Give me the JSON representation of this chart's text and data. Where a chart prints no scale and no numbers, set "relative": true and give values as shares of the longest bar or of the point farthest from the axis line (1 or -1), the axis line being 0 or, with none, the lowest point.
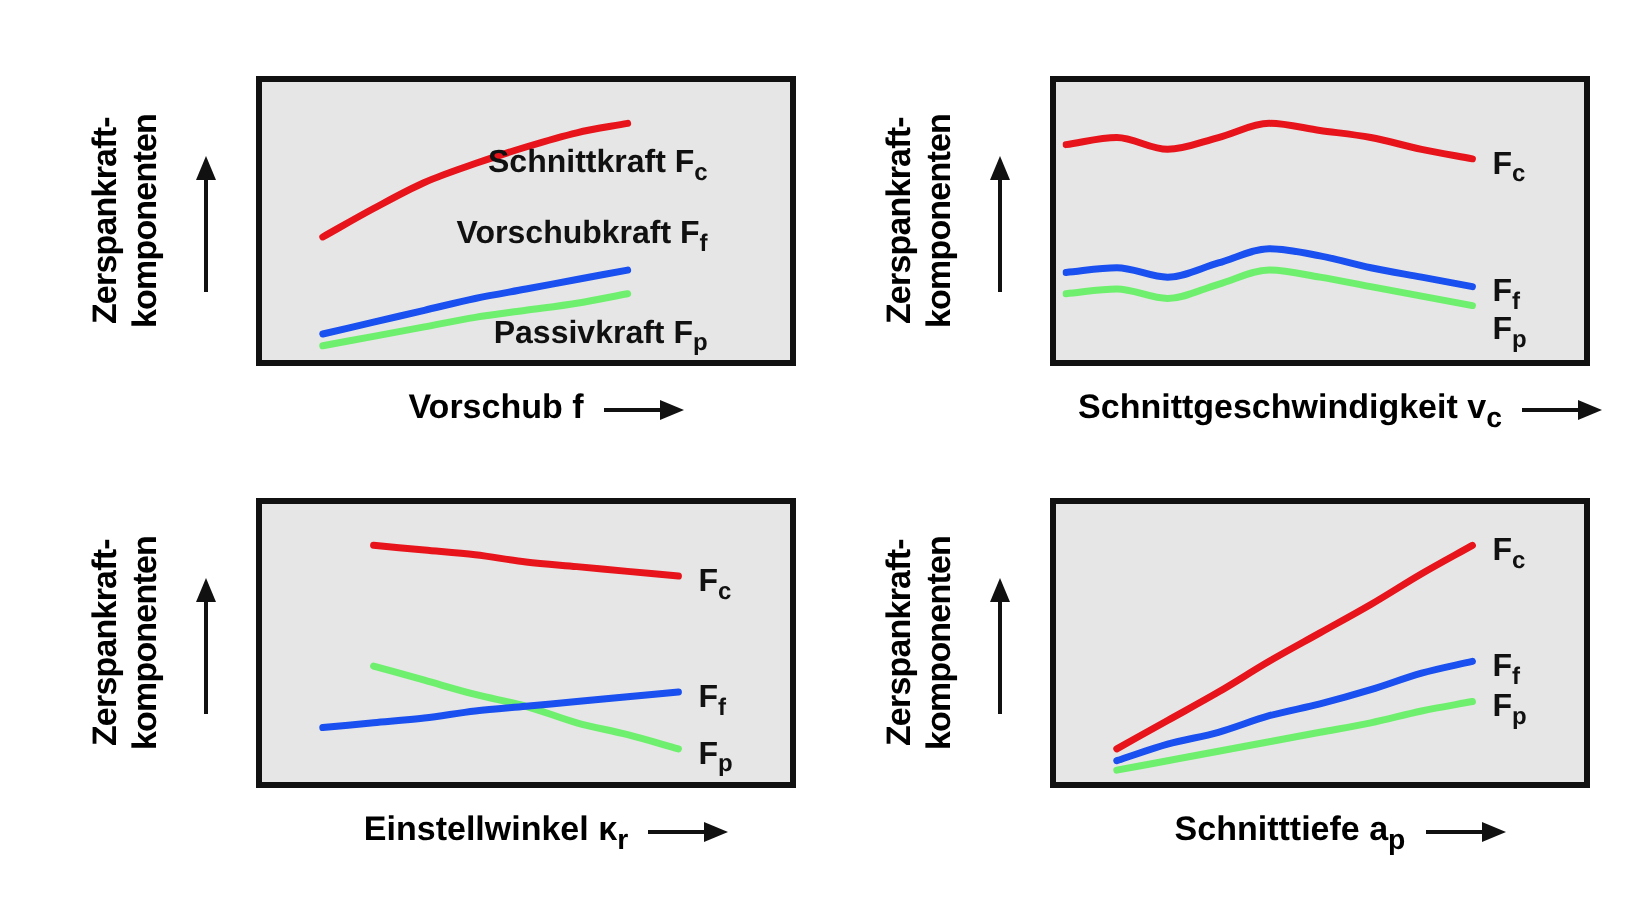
{
  "chart_data": [
    {
      "type": "line",
      "relative": true,
      "marker": "none",
      "line_style": "solid",
      "xlabel": "Vorschub f",
      "ylabel": "Zerspankraft-\nkomponenten",
      "categories": [
        null,
        null,
        null,
        null,
        null,
        null,
        null,
        null,
        null,
        null,
        null
      ],
      "series": [
        {
          "name": "Schnittkraft F$_{c}$",
          "color": "#e8141b",
          "values": [
            null,
            0.52,
            0.64,
            0.75,
            0.83,
            0.9,
            0.96,
            1.0,
            null,
            null,
            null
          ]
        },
        {
          "name": "Vorschubkraft F$_{f}$",
          "color": "#1a4ff0",
          "values": [
            null,
            0.11,
            0.16,
            0.21,
            0.26,
            0.3,
            0.34,
            0.38,
            null,
            null,
            null
          ]
        },
        {
          "name": "Passivkraft F$_{p}$",
          "color": "#6ef06e",
          "values": [
            null,
            0.06,
            0.1,
            0.14,
            0.18,
            0.21,
            0.24,
            0.28,
            null,
            null,
            null
          ]
        }
      ]
    },
    {
      "type": "line",
      "relative": true,
      "marker": "none",
      "line_style": "solid",
      "xlabel": "Schnittgeschwindigkeit v$_{c}$",
      "ylabel": "Zerspankraft-\nkomponenten",
      "categories": [
        null,
        null,
        null,
        null,
        null,
        null,
        null,
        null,
        null,
        null,
        null
      ],
      "series": [
        {
          "name": "F$_{c}$",
          "color": "#e8141b",
          "values": [
            0.91,
            0.94,
            0.89,
            0.94,
            1.0,
            0.97,
            0.94,
            0.89,
            0.85,
            null,
            null
          ]
        },
        {
          "name": "F$_{f}$",
          "color": "#1a4ff0",
          "values": [
            0.37,
            0.39,
            0.35,
            0.41,
            0.47,
            0.44,
            0.39,
            0.35,
            0.31,
            null,
            null
          ]
        },
        {
          "name": "F$_{p}$",
          "color": "#6ef06e",
          "values": [
            0.28,
            0.3,
            0.26,
            0.32,
            0.38,
            0.35,
            0.31,
            0.27,
            0.23,
            null,
            null
          ]
        }
      ]
    },
    {
      "type": "line",
      "relative": true,
      "marker": "none",
      "line_style": "solid",
      "xlabel": "Einstellwinkel κ$_{r}$",
      "ylabel": "Zerspankraft-\nkomponenten",
      "categories": [
        null,
        null,
        null,
        null,
        null,
        null,
        null,
        null,
        null,
        null,
        null
      ],
      "series": [
        {
          "name": "F$_{c}$",
          "color": "#e8141b",
          "values": [
            null,
            null,
            1.0,
            0.98,
            0.96,
            0.93,
            0.91,
            0.89,
            0.87,
            null,
            null
          ]
        },
        {
          "name": "F$_{f}$",
          "color": "#1a4ff0",
          "values": [
            null,
            0.23,
            0.25,
            0.27,
            0.3,
            0.32,
            0.34,
            0.36,
            0.38,
            null,
            null
          ]
        },
        {
          "name": "F$_{p}$",
          "color": "#6ef06e",
          "values": [
            null,
            null,
            0.49,
            0.43,
            0.37,
            0.32,
            0.25,
            0.2,
            0.14,
            null,
            null
          ]
        }
      ]
    },
    {
      "type": "line",
      "relative": true,
      "marker": "none",
      "line_style": "solid",
      "xlabel": "Schnitttiefe a$_{p}$",
      "ylabel": "Zerspankraft-\nkomponenten",
      "categories": [
        null,
        null,
        null,
        null,
        null,
        null,
        null,
        null,
        null,
        null,
        null
      ],
      "series": [
        {
          "name": "F$_{c}$",
          "color": "#e8141b",
          "values": [
            null,
            0.14,
            0.26,
            0.38,
            0.51,
            0.63,
            0.75,
            0.88,
            1.0,
            null,
            null
          ]
        },
        {
          "name": "F$_{f}$",
          "color": "#1a4ff0",
          "values": [
            null,
            0.09,
            0.16,
            0.21,
            0.28,
            0.33,
            0.39,
            0.46,
            0.51,
            null,
            null
          ]
        },
        {
          "name": "F$_{p}$",
          "color": "#6ef06e",
          "values": [
            null,
            0.05,
            0.09,
            0.13,
            0.17,
            0.21,
            0.25,
            0.3,
            0.34,
            null,
            null
          ]
        }
      ]
    }
  ]
}
